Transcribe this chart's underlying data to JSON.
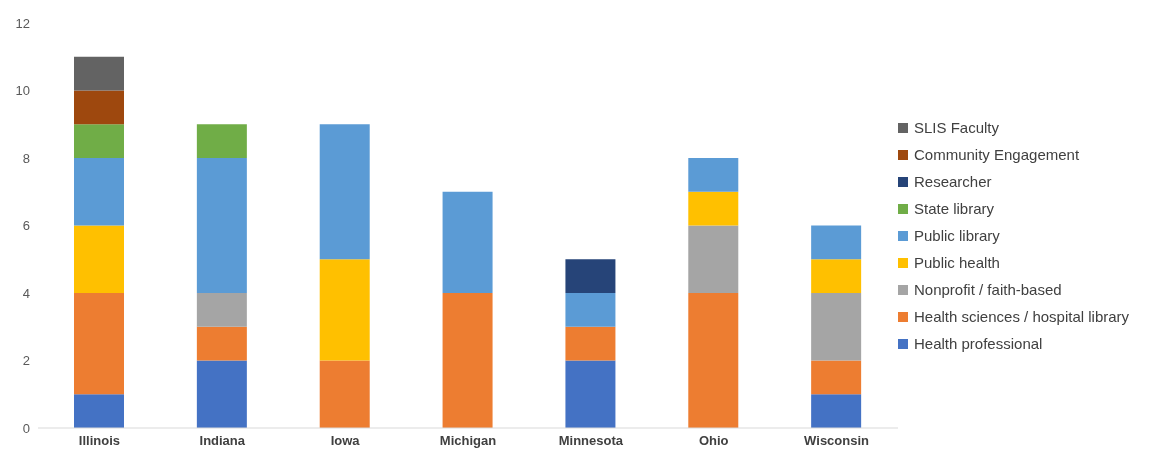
{
  "chart_data": {
    "type": "bar",
    "stacked": true,
    "categories": [
      "Illinois",
      "Indiana",
      "Iowa",
      "Michigan",
      "Minnesota",
      "Ohio",
      "Wisconsin"
    ],
    "series": [
      {
        "name": "Health professional",
        "color": "#4472c4",
        "values": [
          1,
          2,
          0,
          0,
          2,
          0,
          1
        ]
      },
      {
        "name": "Health sciences / hospital library",
        "color": "#ed7d31",
        "values": [
          3,
          1,
          2,
          4,
          1,
          4,
          1
        ]
      },
      {
        "name": "Nonprofit / faith-based",
        "color": "#a5a5a5",
        "values": [
          0,
          1,
          0,
          0,
          0,
          2,
          2
        ]
      },
      {
        "name": "Public health",
        "color": "#ffc000",
        "values": [
          2,
          0,
          3,
          0,
          0,
          1,
          1
        ]
      },
      {
        "name": "Public library",
        "color": "#5b9bd5",
        "values": [
          2,
          4,
          4,
          3,
          1,
          1,
          1
        ]
      },
      {
        "name": "State library",
        "color": "#70ad47",
        "values": [
          1,
          1,
          0,
          0,
          0,
          0,
          0
        ]
      },
      {
        "name": "Researcher",
        "color": "#264478",
        "values": [
          0,
          0,
          0,
          0,
          1,
          0,
          0
        ]
      },
      {
        "name": "Community Engagement",
        "color": "#9e480e",
        "values": [
          1,
          0,
          0,
          0,
          0,
          0,
          0
        ]
      },
      {
        "name": "SLIS Faculty",
        "color": "#636363",
        "values": [
          1,
          0,
          0,
          0,
          0,
          0,
          0
        ]
      }
    ],
    "ylim": [
      0,
      12
    ],
    "yticks": [
      0,
      2,
      4,
      6,
      8,
      10,
      12
    ],
    "grid": false,
    "legend": "right"
  }
}
